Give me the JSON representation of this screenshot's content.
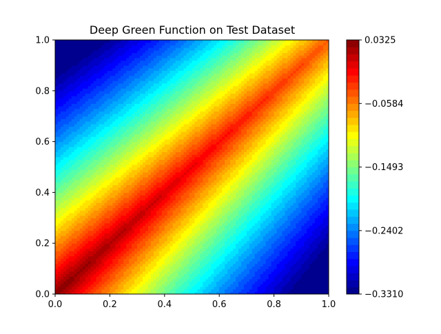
{
  "chart_data": {
    "type": "heatmap",
    "title": "Deep Green Function on Test Dataset",
    "xlabel": "",
    "ylabel": "",
    "xlim": [
      0,
      1
    ],
    "ylim": [
      0,
      1
    ],
    "x_ticks": [
      "0.0",
      "0.2",
      "0.4",
      "0.6",
      "0.8",
      "1.0"
    ],
    "y_ticks": [
      "0.0",
      "0.2",
      "0.4",
      "0.6",
      "0.8",
      "1.0"
    ],
    "colormap": "jet",
    "color_range": [
      -0.331,
      0.0325
    ],
    "colorbar_ticks": [
      {
        "value": 0.0325,
        "label": "0.0325"
      },
      {
        "value": -0.0584,
        "label": "−0.0584"
      },
      {
        "value": -0.1493,
        "label": "−0.1493"
      },
      {
        "value": -0.2402,
        "label": "−0.2402"
      },
      {
        "value": -0.331,
        "label": "−0.3310"
      }
    ],
    "colorbar_position": "right",
    "levels": 36,
    "field_samples": [
      {
        "x": 0.0,
        "y": 0.0,
        "value": 0.0325
      },
      {
        "x": 0.5,
        "y": 0.5,
        "value": -0.01
      },
      {
        "x": 1.0,
        "y": 1.0,
        "value": -0.04
      },
      {
        "x": 0.0,
        "y": 1.0,
        "value": -0.331
      },
      {
        "x": 1.0,
        "y": 0.0,
        "value": -0.285
      }
    ],
    "grid": false
  }
}
